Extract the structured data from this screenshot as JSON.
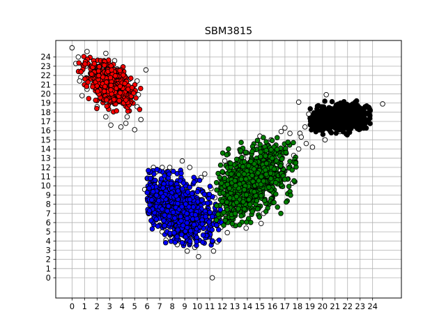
{
  "chart_data": {
    "type": "scatter",
    "title": "SBM3815",
    "xlabel": "",
    "ylabel": "",
    "xlim": [
      -1.3,
      26.3
    ],
    "ylim": [
      -2.2,
      25.8
    ],
    "x_ticks": [
      0,
      1,
      2,
      3,
      4,
      5,
      6,
      7,
      8,
      9,
      10,
      11,
      12,
      13,
      14,
      15,
      16,
      17,
      18,
      19,
      20,
      21,
      22,
      23,
      24
    ],
    "y_ticks": [
      0,
      1,
      2,
      3,
      4,
      5,
      6,
      7,
      8,
      9,
      10,
      11,
      12,
      13,
      14,
      15,
      16,
      17,
      18,
      19,
      20,
      21,
      22,
      23,
      24
    ],
    "grid": true,
    "clusters": [
      {
        "color": "#ff0000",
        "cx": 3.0,
        "cy": 21.0,
        "sx": 1.0,
        "sy": 1.3,
        "rho": -0.55,
        "n": 450,
        "bounds": [
          0.5,
          5.5,
          18.0,
          24.5
        ],
        "approximate": true
      },
      {
        "color": "#0000ff",
        "cx": 8.4,
        "cy": 7.5,
        "sx": 1.5,
        "sy": 1.8,
        "rho": -0.45,
        "n": 900,
        "bounds": [
          6.0,
          12.0,
          3.5,
          12.0
        ],
        "approximate": true
      },
      {
        "color": "#008000",
        "cx": 14.3,
        "cy": 10.4,
        "sx": 1.6,
        "sy": 2.1,
        "rho": 0.55,
        "n": 850,
        "bounds": [
          11.5,
          18.0,
          5.5,
          15.5
        ],
        "approximate": true
      },
      {
        "color": "#000000",
        "cx": 21.3,
        "cy": 17.4,
        "sx": 1.2,
        "sy": 0.65,
        "rho": 0.2,
        "n": 700,
        "bounds": [
          19.0,
          24.0,
          15.5,
          19.5
        ],
        "approximate": true
      }
    ],
    "outliers": [
      [
        0,
        25
      ],
      [
        1.2,
        24.6
      ],
      [
        0.5,
        24
      ],
      [
        0.3,
        23.3
      ],
      [
        1.1,
        23
      ],
      [
        2.7,
        24.4
      ],
      [
        3.4,
        23.6
      ],
      [
        5.9,
        22.6
      ],
      [
        0.7,
        21.8
      ],
      [
        0.6,
        21.4
      ],
      [
        1.2,
        20.5
      ],
      [
        0.8,
        19.8
      ],
      [
        2.0,
        18.6
      ],
      [
        2.7,
        17.5
      ],
      [
        3.1,
        16.6
      ],
      [
        3.9,
        16.4
      ],
      [
        4.4,
        17.5
      ],
      [
        5.0,
        16.1
      ],
      [
        5.5,
        17.2
      ],
      [
        4.3,
        16.8
      ],
      [
        5.2,
        18.6
      ],
      [
        5.3,
        19.9
      ],
      [
        5.2,
        21.4
      ],
      [
        3.6,
        22.7
      ],
      [
        4.6,
        21.6
      ],
      [
        6.5,
        12.0
      ],
      [
        6.7,
        11.5
      ],
      [
        7.2,
        12.0
      ],
      [
        7.8,
        12.0
      ],
      [
        8.8,
        12.7
      ],
      [
        9.4,
        12.0
      ],
      [
        5.8,
        9.6
      ],
      [
        6.0,
        10.8
      ],
      [
        6.2,
        8.6
      ],
      [
        6.5,
        6.4
      ],
      [
        7.2,
        5.0
      ],
      [
        7.5,
        4.1
      ],
      [
        8.0,
        4.3
      ],
      [
        8.4,
        3.6
      ],
      [
        9.2,
        2.9
      ],
      [
        9.8,
        3.3
      ],
      [
        10.1,
        2.3
      ],
      [
        10.8,
        4.4
      ],
      [
        11.3,
        2.9
      ],
      [
        11.6,
        3.9
      ],
      [
        11.2,
        0
      ],
      [
        10.3,
        10.9
      ],
      [
        10.6,
        11.3
      ],
      [
        11.1,
        9.7
      ],
      [
        10.9,
        8.9
      ],
      [
        10.4,
        8.5
      ],
      [
        11.4,
        8.7
      ],
      [
        11.8,
        6.8
      ],
      [
        12.0,
        6.6
      ],
      [
        11.9,
        5.5
      ],
      [
        11.2,
        6.3
      ],
      [
        12.5,
        6.6
      ],
      [
        12.9,
        5.7
      ],
      [
        13.9,
        5.4
      ],
      [
        12.4,
        4.9
      ],
      [
        12.2,
        12.7
      ],
      [
        12.5,
        11.3
      ],
      [
        13.3,
        12.3
      ],
      [
        13.7,
        13.0
      ],
      [
        14.6,
        14.3
      ],
      [
        15.0,
        15.4
      ],
      [
        15.9,
        15.0
      ],
      [
        16.7,
        15.9
      ],
      [
        17.0,
        16.3
      ],
      [
        17.4,
        15.7
      ],
      [
        18.2,
        15.7
      ],
      [
        18.6,
        16.4
      ],
      [
        18.3,
        15.3
      ],
      [
        18.9,
        17.8
      ],
      [
        19.3,
        16.9
      ],
      [
        19.2,
        14.2
      ],
      [
        18.7,
        14.6
      ],
      [
        18.1,
        14.0
      ],
      [
        17.7,
        13.3
      ],
      [
        17.3,
        12.2
      ],
      [
        17.0,
        11.6
      ],
      [
        17.6,
        10.3
      ],
      [
        16.8,
        10.7
      ],
      [
        18.1,
        19.1
      ],
      [
        20.3,
        19.9
      ],
      [
        23.3,
        16.9
      ],
      [
        24.8,
        18.9
      ],
      [
        20.2,
        15.0
      ],
      [
        21.4,
        15.9
      ],
      [
        15.1,
        5.9
      ],
      [
        15.3,
        7.0
      ],
      [
        16.2,
        13.8
      ],
      [
        15.0,
        13.1
      ]
    ]
  }
}
